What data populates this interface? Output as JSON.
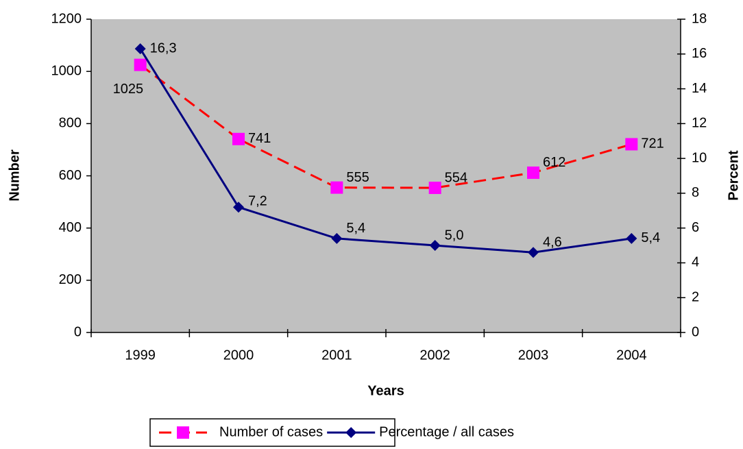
{
  "chart_data": {
    "type": "line",
    "x_label": "Years",
    "y_label": "Number",
    "y2_label": "Percent",
    "categories": [
      "1999",
      "2000",
      "2001",
      "2002",
      "2003",
      "2004"
    ],
    "series": [
      {
        "name": "Number of cases",
        "color": "#ff0000",
        "marker_color": "#ff00ff",
        "marker": "square",
        "dashed": true,
        "values": [
          1025,
          741,
          555,
          554,
          612,
          721
        ]
      },
      {
        "name": "Percentage / all cases",
        "color": "#000080",
        "marker_color": "#000080",
        "marker": "diamond",
        "dashed": false,
        "axis": "y2",
        "values": [
          16.3,
          7.2,
          5.4,
          5.0,
          4.6,
          5.4
        ],
        "value_labels": [
          "16,3",
          "7,2",
          "5,4",
          "5,0",
          "4,6",
          "5,4"
        ]
      }
    ],
    "ylim": [
      0,
      1200
    ],
    "yticks": [
      0,
      200,
      400,
      600,
      800,
      1000,
      1200
    ],
    "y2lim": [
      0,
      18
    ],
    "y2ticks": [
      0,
      2,
      4,
      6,
      8,
      10,
      12,
      14,
      16,
      18
    ],
    "plot_background": "#c0c0c0",
    "legend": "bottom"
  }
}
